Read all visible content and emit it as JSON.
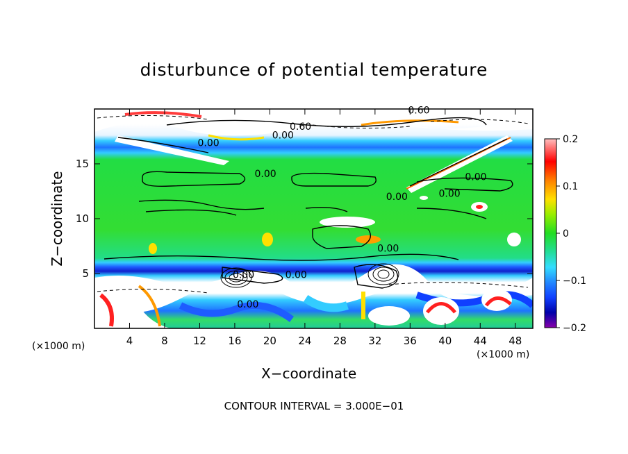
{
  "chart_data": {
    "type": "heatmap",
    "title": "disturbunce of potential temperature",
    "xlabel": "X−coordinate",
    "ylabel": "Z−coordinate",
    "x_unit": "(×1000 m)",
    "z_unit": "(×1000 m)",
    "xlim": [
      0,
      50
    ],
    "ylim": [
      0,
      20
    ],
    "x_ticks": [
      4,
      8,
      12,
      16,
      20,
      24,
      28,
      32,
      36,
      40,
      44,
      48
    ],
    "y_ticks": [
      5,
      10,
      15
    ],
    "colorbar": {
      "range": [
        -0.2,
        0.2
      ],
      "tick_labels": [
        "0.2",
        "0.1",
        "0",
        "−0.1",
        "−0.2"
      ],
      "tick_values": [
        0.2,
        0.1,
        0,
        -0.1,
        -0.2
      ]
    },
    "contour_labels": [
      "0.00",
      "0.00",
      "0.00",
      "0.00",
      "0.00",
      "0.00",
      "0.00",
      "0.00",
      "0.00",
      "0.00",
      "0.60",
      "0.60"
    ],
    "footer": "CONTOUR INTERVAL = 3.000E−01"
  }
}
